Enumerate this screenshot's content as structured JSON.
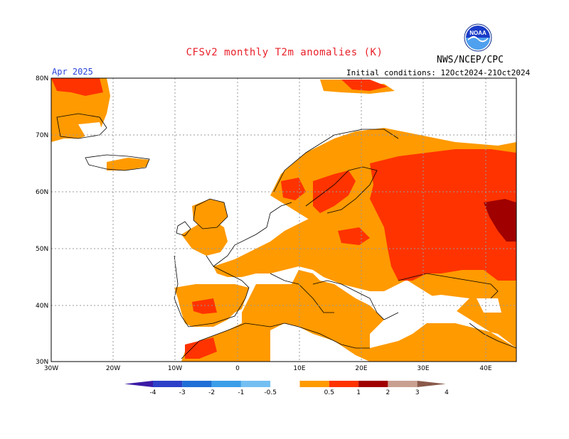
{
  "header": {
    "title": "CFSv2 monthly T2m anomalies (K)",
    "month": "Apr 2025",
    "initial_conditions": "Initial conditions: 12Oct2024-21Oct2024",
    "agency": "NWS/NCEP/CPC",
    "logo_text": "NOAA",
    "logo_icon": "noaa-logo-icon"
  },
  "axes": {
    "lat_labels": [
      "80N",
      "70N",
      "60N",
      "50N",
      "40N",
      "30N"
    ],
    "lon_labels": [
      "30W",
      "20W",
      "10W",
      "0",
      "10E",
      "20E",
      "30E",
      "40E"
    ]
  },
  "legend": {
    "tick_labels": [
      "-4",
      "-3",
      "-2",
      "-1",
      "-0.5",
      "0.5",
      "1",
      "2",
      "3",
      "4"
    ],
    "colors": [
      "#3b1aa5",
      "#2d40c8",
      "#1f6fd6",
      "#3c9ee8",
      "#74bff2",
      "#ffffff",
      "#ff9a00",
      "#ff3300",
      "#a00000",
      "#c9a090",
      "#8a5a4a"
    ]
  },
  "colors": {
    "orange": "#ff9a00",
    "red": "#ff3300",
    "darkred": "#a00000",
    "grid": "#999999"
  }
}
